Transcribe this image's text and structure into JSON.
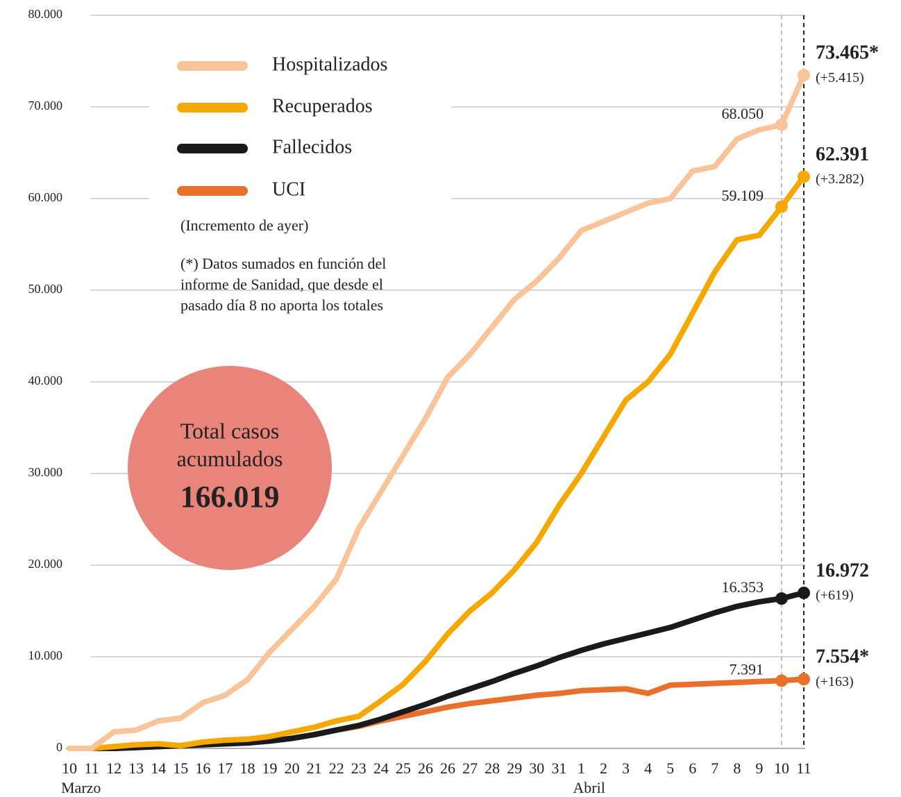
{
  "chart_data": {
    "type": "line",
    "categories": [
      "10",
      "11",
      "12",
      "13",
      "14",
      "15",
      "16",
      "17",
      "18",
      "19",
      "20",
      "21",
      "22",
      "23",
      "24",
      "25",
      "26",
      "26",
      "27",
      "28",
      "29",
      "30",
      "31",
      "1",
      "2",
      "3",
      "4",
      "5",
      "6",
      "7",
      "8",
      "9",
      "10",
      "11"
    ],
    "months": [
      {
        "label": "Marzo",
        "index": 0
      },
      {
        "label": "Abril",
        "index": 23
      }
    ],
    "ylim": [
      0,
      80000
    ],
    "yticks": [
      0,
      {
        "value": 10000,
        "label": "10.000"
      },
      {
        "value": 20000,
        "label": "20.000"
      },
      {
        "value": 30000,
        "label": "30.000"
      },
      {
        "value": 40000,
        "label": "40.000"
      },
      {
        "value": 50000,
        "label": "50.000"
      },
      {
        "value": 60000,
        "label": "60.000"
      },
      {
        "value": 70000,
        "label": "70.000"
      },
      {
        "value": 80000,
        "label": "80.000"
      }
    ],
    "grid": true,
    "series": [
      {
        "name": "Hospitalizados",
        "color": "#f9c49a",
        "values": [
          0,
          0,
          1800,
          2000,
          3000,
          3300,
          5000,
          5800,
          7500,
          10500,
          13000,
          15500,
          18500,
          24000,
          28000,
          32000,
          36000,
          40500,
          43000,
          46000,
          49000,
          51000,
          53500,
          56500,
          57500,
          58500,
          59500,
          60000,
          63000,
          63500,
          66500,
          67500,
          68050,
          73465
        ],
        "value_labels": [
          null,
          null,
          null,
          null,
          null,
          null,
          null,
          null,
          null,
          null,
          null,
          null,
          null,
          null,
          null,
          null,
          null,
          null,
          null,
          null,
          null,
          null,
          null,
          null,
          null,
          null,
          null,
          null,
          null,
          null,
          null,
          null,
          "68.050",
          "73.465*"
        ],
        "increment_label": "(+5.415)"
      },
      {
        "name": "Recuperados",
        "color": "#f5a800",
        "values": [
          0,
          0,
          200,
          400,
          500,
          300,
          700,
          900,
          1000,
          1300,
          1800,
          2300,
          3000,
          3500,
          5200,
          7000,
          9500,
          12500,
          15000,
          17000,
          19500,
          22500,
          26500,
          30000,
          34000,
          38000,
          40000,
          43000,
          47500,
          52000,
          55500,
          56000,
          59109,
          62391
        ],
        "value_labels": [
          null,
          null,
          null,
          null,
          null,
          null,
          null,
          null,
          null,
          null,
          null,
          null,
          null,
          null,
          null,
          null,
          null,
          null,
          null,
          null,
          null,
          null,
          null,
          null,
          null,
          null,
          null,
          null,
          null,
          null,
          null,
          null,
          "59.109",
          "62.391"
        ],
        "increment_label": "(+3.282)"
      },
      {
        "name": "Fallecidos",
        "color": "#1a1a1a",
        "values": [
          null,
          0,
          0,
          100,
          200,
          300,
          400,
          500,
          600,
          800,
          1100,
          1500,
          2000,
          2500,
          3200,
          4000,
          4800,
          5700,
          6500,
          7300,
          8200,
          9000,
          9900,
          10700,
          11400,
          12000,
          12600,
          13200,
          14000,
          14800,
          15500,
          16000,
          16353,
          16972
        ],
        "value_labels": [
          null,
          null,
          null,
          null,
          null,
          null,
          null,
          null,
          null,
          null,
          null,
          null,
          null,
          null,
          null,
          null,
          null,
          null,
          null,
          null,
          null,
          null,
          null,
          null,
          null,
          null,
          null,
          null,
          null,
          null,
          null,
          null,
          "16.353",
          "16.972"
        ],
        "increment_label": "(+619)"
      },
      {
        "name": "UCI",
        "color": "#e8702a",
        "values": [
          0,
          0,
          0,
          100,
          200,
          300,
          400,
          500,
          600,
          800,
          1100,
          1500,
          2000,
          2400,
          3000,
          3500,
          4000,
          4500,
          4900,
          5200,
          5500,
          5800,
          6000,
          6300,
          6400,
          6500,
          6000,
          6900,
          7000,
          7100,
          7200,
          7300,
          7391,
          7554
        ],
        "value_labels": [
          null,
          null,
          null,
          null,
          null,
          null,
          null,
          null,
          null,
          null,
          null,
          null,
          null,
          null,
          null,
          null,
          null,
          null,
          null,
          null,
          null,
          null,
          null,
          null,
          null,
          null,
          null,
          null,
          null,
          null,
          null,
          null,
          "7.391",
          "7.554*"
        ],
        "increment_label": "(+163)"
      }
    ],
    "note": "(Incremento de ayer)",
    "footnote": [
      "(*) Datos sumados en función del",
      "informe de Sanidad, que desde el",
      "pasado día 8 no aporta los totales"
    ],
    "total": {
      "label": [
        "Total casos",
        "acumulados"
      ],
      "value_label": "166.019",
      "color": "#e8847a"
    }
  }
}
